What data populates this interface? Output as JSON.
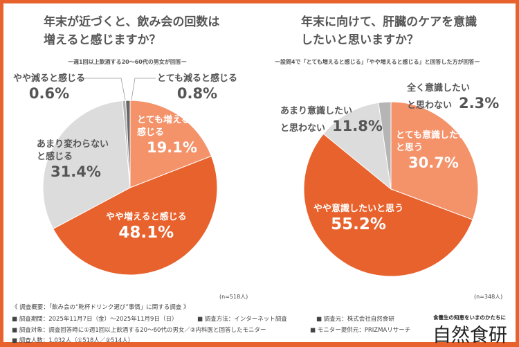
{
  "colors": {
    "frame": "#e8622d",
    "strong": "#e8622d",
    "light": "#f4926a",
    "neutral": "#dcdcdc",
    "minor1": "#b5b5b5",
    "minor2": "#666666"
  },
  "chart_data": [
    {
      "type": "pie",
      "title": "年末が近づくと、飲み会の回数は増えると感じますか？",
      "title_line1": "年末が近づくと、飲み会の回数は",
      "title_line2": "増えると感じますか？",
      "subtitle": "ー週1回以上飲酒する20〜60代の男女が回答ー",
      "n": "(n=518人)",
      "slices": [
        {
          "label": "とても増えると感じる",
          "label_lines": [
            "とても増えると",
            "感じる"
          ],
          "value": 19.1,
          "pct": "19.1%",
          "color": "#f4926a"
        },
        {
          "label": "やや増えると感じる",
          "label_lines": [
            "やや増えると感じる"
          ],
          "value": 48.1,
          "pct": "48.1%",
          "color": "#e8622d"
        },
        {
          "label": "あまり変わらないと感じる",
          "label_lines": [
            "あまり変わらない",
            "と感じる"
          ],
          "value": 31.4,
          "pct": "31.4%",
          "color": "#dcdcdc"
        },
        {
          "label": "やや減ると感じる",
          "label_lines": [
            "やや減ると感じる"
          ],
          "value": 0.6,
          "pct": "0.6%",
          "color": "#b5b5b5"
        },
        {
          "label": "とても減ると感じる",
          "label_lines": [
            "とても減ると感じる"
          ],
          "value": 0.8,
          "pct": "0.8%",
          "color": "#666666"
        }
      ]
    },
    {
      "type": "pie",
      "title": "年末に向けて、肝臓のケアを意識したいと思いますか？",
      "title_line1": "年末に向けて、肝臓のケアを意識",
      "title_line2": "したいと思いますか？",
      "subtitle": "ー設問4で「とても増えると感じる」「やや増えると感じる」と回答した方が回答ー",
      "n": "(n=348人)",
      "slices": [
        {
          "label": "とても意識したいと思う",
          "label_lines": [
            "とても意識したい",
            "と思う"
          ],
          "value": 30.7,
          "pct": "30.7%",
          "color": "#f4926a"
        },
        {
          "label": "やや意識したいと思う",
          "label_lines": [
            "やや意識したいと思う"
          ],
          "value": 55.2,
          "pct": "55.2%",
          "color": "#e8622d"
        },
        {
          "label": "あまり意識したいと思わない",
          "label_lines": [
            "あまり意識したい",
            "と思わない"
          ],
          "value": 11.8,
          "pct": "11.8%",
          "color": "#dcdcdc"
        },
        {
          "label": "全く意識したいと思わない",
          "label_lines": [
            "全く意識したい",
            "と思わない"
          ],
          "value": 2.3,
          "pct": "2.3%",
          "color": "#b5b5b5"
        }
      ]
    }
  ],
  "footer": {
    "overview": "《 調査概要：「飲み会の“乾杯ドリンク選び”事情」に関する調査 》",
    "period": "■ 調査期間：2025年11月7日（金）〜2025年11月9日（日）",
    "method": "■ 調査方法：インターネット調査",
    "source": "■ 調査元：株式会社自然食研",
    "target": "■ 調査対象：調査回答時に①週1回以上飲酒する20〜60代の男女／②内科医と回答したモニター",
    "provider": "■ モニター提供元：PRIZMAリサーチ",
    "count": "■ 調査人数：1,032人（①518人／②514人）"
  },
  "brand": {
    "tagline": "食養生の知恵をいまのかたちに",
    "name": "自然食研"
  }
}
